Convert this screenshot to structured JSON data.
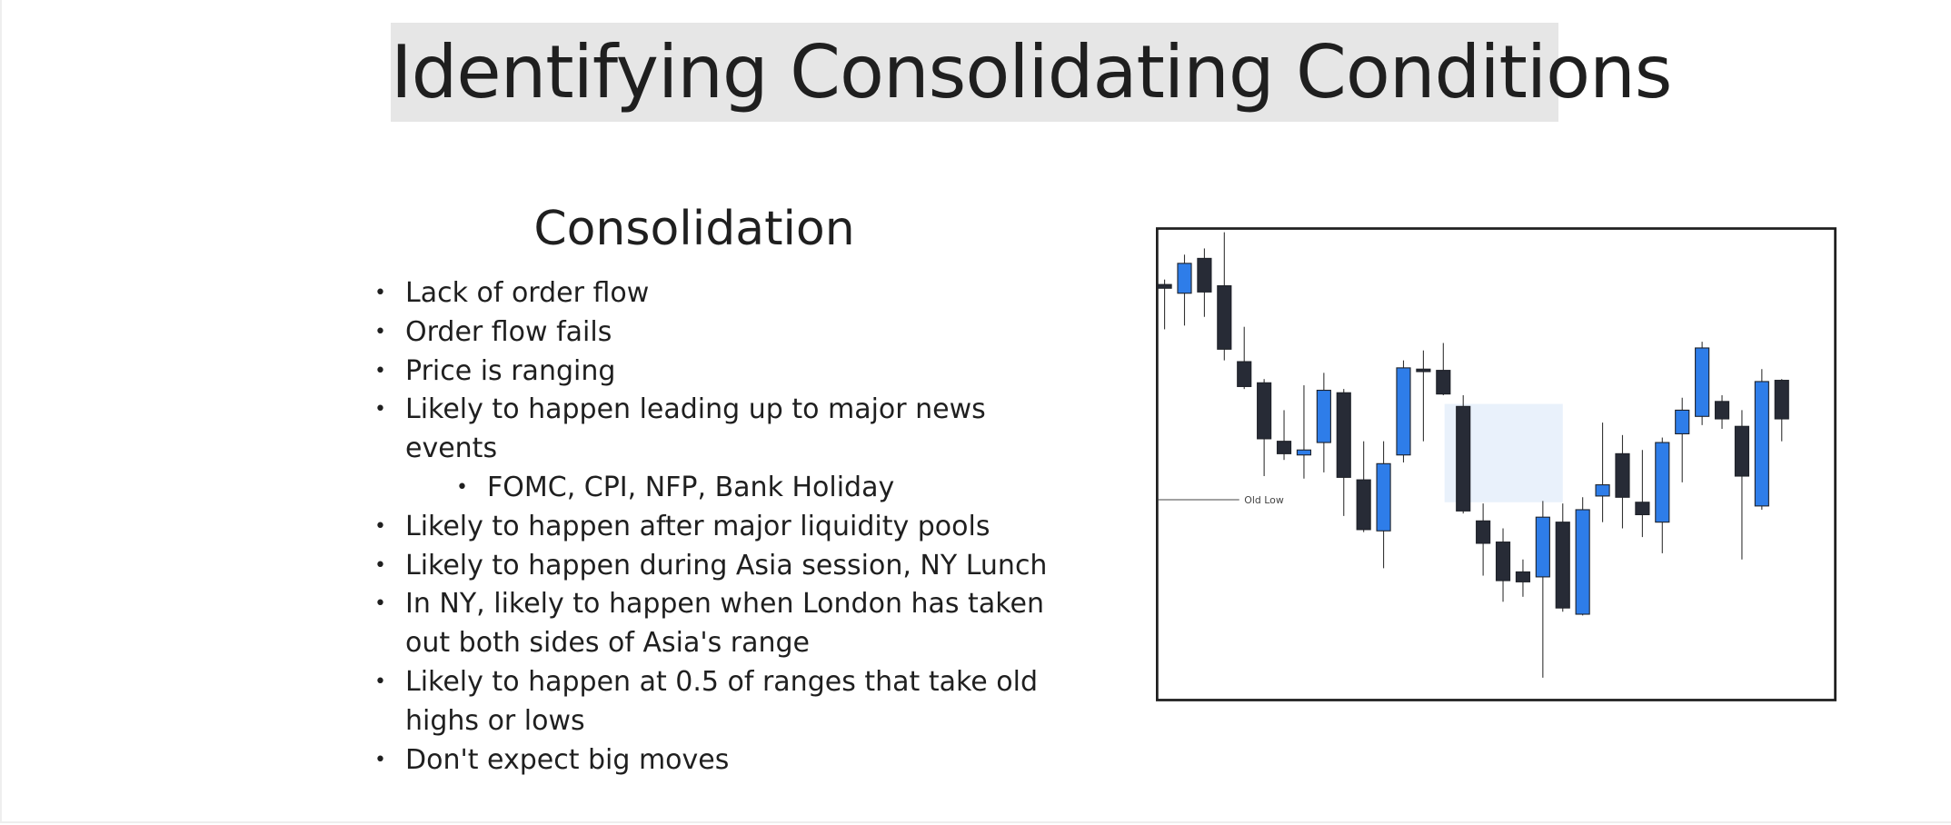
{
  "header": {
    "title": "Identifying Consolidating Conditions"
  },
  "section": {
    "heading": "Consolidation",
    "bullets": [
      {
        "text": "Lack of order flow",
        "level": 1
      },
      {
        "text": "Order flow fails",
        "level": 1
      },
      {
        "text": "Price is ranging",
        "level": 1
      },
      {
        "text": "Likely to happen leading up to major news events",
        "level": 1
      },
      {
        "text": "FOMC, CPI, NFP, Bank Holiday",
        "level": 2
      },
      {
        "text": "Likely to happen after major liquidity pools",
        "level": 1
      },
      {
        "text": "Likely to happen during Asia session, NY Lunch",
        "level": 1
      },
      {
        "text": "In NY, likely to happen when London has taken out both sides of Asia's range",
        "level": 1
      },
      {
        "text": "Likely to happen at 0.5 of ranges that take old highs or lows",
        "level": 1
      },
      {
        "text": "Don't expect big moves",
        "level": 1
      }
    ]
  },
  "illustration": {
    "label": "Old Low"
  }
}
